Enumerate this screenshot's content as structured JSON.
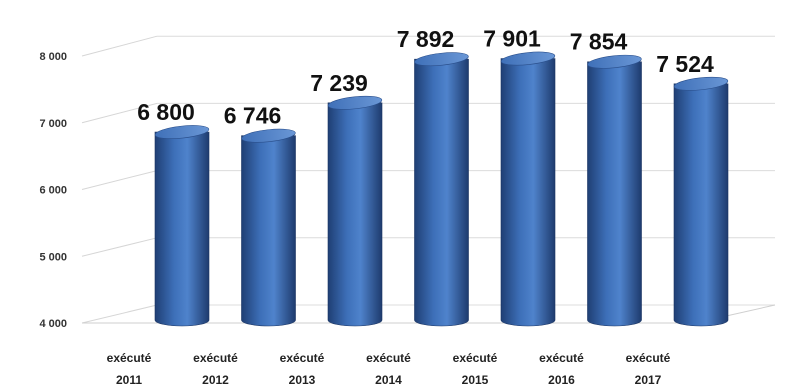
{
  "chart_data": {
    "type": "bar",
    "categories": [
      [
        "exécuté",
        "2011"
      ],
      [
        "exécuté",
        "2012"
      ],
      [
        "exécuté",
        "2013"
      ],
      [
        "exécuté",
        "2014"
      ],
      [
        "exécuté",
        "2015"
      ],
      [
        "exécuté",
        "2016"
      ],
      [
        "exécuté",
        "2017"
      ]
    ],
    "values": [
      6800,
      6746,
      7239,
      7892,
      7901,
      7854,
      7524
    ],
    "data_labels": [
      "6 800",
      "6 746",
      "7 239",
      "7 892",
      "7 901",
      "7 854",
      "7 524"
    ],
    "yticks": [
      {
        "value": 4000,
        "label": "4 000"
      },
      {
        "value": 5000,
        "label": "5 000"
      },
      {
        "value": 6000,
        "label": "6 000"
      },
      {
        "value": 7000,
        "label": "7 000"
      },
      {
        "value": 8000,
        "label": "8 000"
      }
    ],
    "ylim": [
      4000,
      8000
    ],
    "grid": true,
    "style": "3d-cylinder",
    "bar_color": "#3a67ad",
    "title": "",
    "xlabel": "",
    "ylabel": ""
  }
}
